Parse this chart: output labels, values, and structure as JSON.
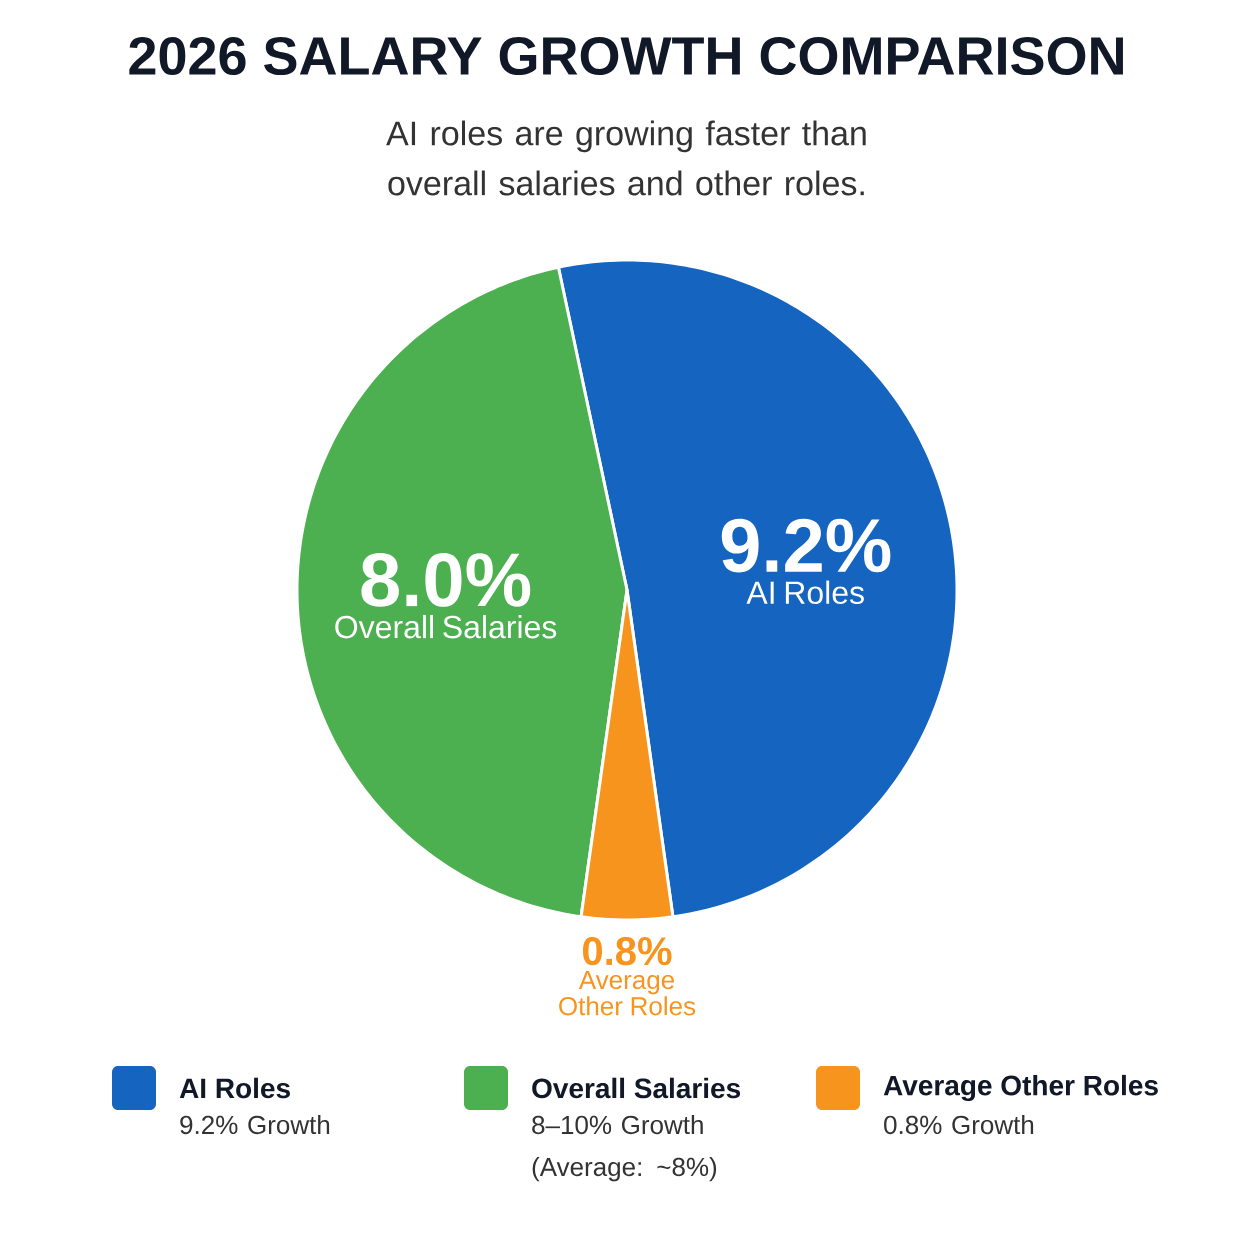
{
  "chart_data": {
    "type": "pie",
    "title": "2026 SALARY GROWTH COMPARISON",
    "subtitle": "AI roles are growing faster than overall salaries and other roles.",
    "categories": [
      "AI Roles",
      "Overall Salaries",
      "Average Other Roles"
    ],
    "values": [
      9.2,
      8.0,
      0.8
    ],
    "colors": [
      "#1565c0",
      "#4caf50",
      "#f7941d"
    ],
    "value_labels": [
      "9.2%",
      "8.0%",
      "0.8%"
    ],
    "legend": "bottom",
    "annotations": [
      "9.2% Growth",
      "8–10% Growth (Average: ~8%)",
      "0.8% Growth"
    ]
  }
}
